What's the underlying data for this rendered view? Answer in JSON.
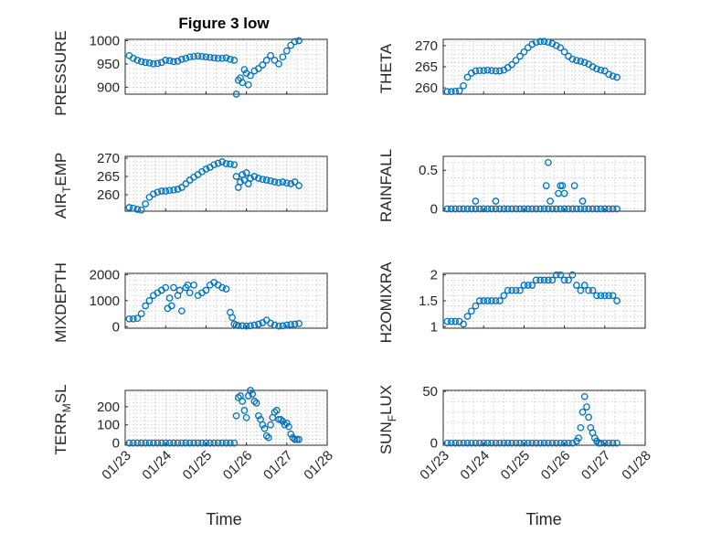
{
  "chart_data": [
    {
      "type": "scatter",
      "id": "pressure",
      "title": "Figure 3 low",
      "ylabel": "PRESSURE",
      "ylim": [
        885,
        1003
      ],
      "yticks": [
        900,
        950,
        1000
      ],
      "ytick_labels": [
        "900",
        "950",
        "1000"
      ],
      "x": [
        0.1,
        0.2,
        0.3,
        0.4,
        0.5,
        0.6,
        0.7,
        0.8,
        0.9,
        1.0,
        1.1,
        1.2,
        1.3,
        1.4,
        1.5,
        1.6,
        1.7,
        1.8,
        1.9,
        2.0,
        2.1,
        2.2,
        2.3,
        2.4,
        2.5,
        2.6,
        2.7,
        2.75,
        2.8,
        2.85,
        2.9,
        2.95,
        3.0,
        3.05,
        3.1,
        3.2,
        3.3,
        3.4,
        3.5,
        3.6,
        3.7,
        3.8,
        3.9,
        4.0,
        4.1,
        4.2,
        4.3
      ],
      "y": [
        968,
        962,
        958,
        955,
        953,
        952,
        950,
        951,
        953,
        958,
        957,
        955,
        956,
        960,
        962,
        965,
        966,
        967,
        966,
        965,
        964,
        963,
        962,
        962,
        963,
        960,
        958,
        885,
        915,
        920,
        910,
        938,
        930,
        905,
        925,
        935,
        940,
        948,
        958,
        968,
        958,
        950,
        965,
        978,
        990,
        998,
        1000
      ]
    },
    {
      "type": "scatter",
      "id": "theta",
      "ylabel": "THETA",
      "ylim": [
        258.5,
        271.5
      ],
      "yticks": [
        260,
        265,
        270
      ],
      "ytick_labels": [
        "260",
        "265",
        "270"
      ],
      "x": [
        0.1,
        0.2,
        0.3,
        0.4,
        0.5,
        0.6,
        0.7,
        0.8,
        0.9,
        1.0,
        1.1,
        1.2,
        1.3,
        1.4,
        1.5,
        1.6,
        1.7,
        1.8,
        1.9,
        2.0,
        2.1,
        2.2,
        2.3,
        2.4,
        2.5,
        2.6,
        2.7,
        2.8,
        2.9,
        3.0,
        3.1,
        3.2,
        3.3,
        3.4,
        3.5,
        3.6,
        3.7,
        3.8,
        3.9,
        4.0,
        4.1,
        4.2,
        4.3
      ],
      "y": [
        259.1,
        259.1,
        259.2,
        259.3,
        260.5,
        262.5,
        263.5,
        264,
        264.1,
        264.1,
        264.2,
        264.1,
        264,
        264,
        264.2,
        264.8,
        265.5,
        266.5,
        267.5,
        268.5,
        269.5,
        270.3,
        270.8,
        271,
        271,
        270.8,
        270.5,
        270,
        269.5,
        268.5,
        267.5,
        266.8,
        266.5,
        266.3,
        266,
        265.6,
        265,
        264.5,
        264.2,
        264,
        263.2,
        262.8,
        262.5
      ]
    },
    {
      "type": "scatter",
      "id": "air-temp",
      "ylabel_main": "AIR",
      "ylabel_sub": "T",
      "ylabel_rest": "EMP",
      "ylim": [
        255.5,
        270.5
      ],
      "yticks": [
        260,
        265,
        270
      ],
      "ytick_labels": [
        "260",
        "265",
        "270"
      ],
      "x": [
        0.1,
        0.2,
        0.3,
        0.4,
        0.5,
        0.6,
        0.7,
        0.8,
        0.9,
        1.0,
        1.1,
        1.2,
        1.3,
        1.4,
        1.5,
        1.6,
        1.7,
        1.8,
        1.9,
        2.0,
        2.1,
        2.2,
        2.3,
        2.4,
        2.5,
        2.6,
        2.7,
        2.75,
        2.8,
        2.85,
        2.9,
        2.95,
        3.0,
        3.05,
        3.1,
        3.2,
        3.3,
        3.4,
        3.5,
        3.6,
        3.7,
        3.8,
        3.9,
        4.0,
        4.1,
        4.2,
        4.3
      ],
      "y": [
        256.5,
        256.3,
        256,
        255.8,
        257.5,
        259.3,
        260.2,
        260.7,
        261,
        261,
        261.2,
        261.3,
        261.5,
        262,
        263,
        264,
        264.8,
        265.5,
        266.3,
        267,
        267.5,
        268.2,
        268.6,
        269,
        268.5,
        268.4,
        268.2,
        265,
        262,
        263.5,
        265.5,
        264,
        266,
        263,
        264.5,
        265,
        264.5,
        264.2,
        264,
        263.8,
        263.5,
        263.3,
        263.5,
        263.2,
        263,
        263.5,
        262.5
      ]
    },
    {
      "type": "scatter",
      "id": "rainfall",
      "ylabel": "RAINFALL",
      "ylim": [
        -0.03,
        0.68
      ],
      "yticks": [
        0,
        0.5
      ],
      "ytick_labels": [
        "0",
        "0.5"
      ],
      "x": [
        0.1,
        0.2,
        0.3,
        0.4,
        0.5,
        0.6,
        0.7,
        0.8,
        0.9,
        1.0,
        1.1,
        1.2,
        1.3,
        1.4,
        1.5,
        1.6,
        1.7,
        1.8,
        1.9,
        2.0,
        2.1,
        2.2,
        2.3,
        2.4,
        2.5,
        2.6,
        2.7,
        2.8,
        2.9,
        3.0,
        3.1,
        3.2,
        3.3,
        3.4,
        3.5,
        3.6,
        3.7,
        3.8,
        3.9,
        4.0,
        4.1,
        4.2,
        4.3,
        0.8,
        1.3,
        2.55,
        2.6,
        2.65,
        2.85,
        2.9,
        2.95,
        3.0,
        3.25,
        3.45
      ],
      "y": [
        0,
        0,
        0,
        0,
        0,
        0,
        0,
        0,
        0,
        0,
        0,
        0,
        0,
        0,
        0,
        0,
        0,
        0,
        0,
        0,
        0,
        0,
        0,
        0,
        0,
        0,
        0,
        0,
        0,
        0,
        0,
        0,
        0,
        0,
        0,
        0,
        0,
        0,
        0,
        0,
        0,
        0,
        0,
        0.1,
        0.1,
        0.3,
        0.6,
        0.1,
        0.2,
        0.3,
        0.3,
        0.2,
        0.3,
        0.1
      ]
    },
    {
      "type": "scatter",
      "id": "mixdepth",
      "ylabel": "MIXDEPTH",
      "ylim": [
        -60,
        2050
      ],
      "yticks": [
        0,
        1000,
        2000
      ],
      "ytick_labels": [
        "0",
        "1000",
        "2000"
      ],
      "x": [
        0.1,
        0.2,
        0.3,
        0.4,
        0.5,
        0.6,
        0.7,
        0.8,
        0.9,
        1.0,
        1.05,
        1.1,
        1.15,
        1.2,
        1.3,
        1.35,
        1.4,
        1.5,
        1.55,
        1.6,
        1.7,
        1.8,
        1.9,
        2.0,
        2.1,
        2.2,
        2.3,
        2.4,
        2.5,
        2.6,
        2.65,
        2.7,
        2.75,
        2.8,
        2.9,
        3.0,
        3.1,
        3.2,
        3.3,
        3.4,
        3.5,
        3.6,
        3.7,
        3.8,
        3.9,
        4.0,
        4.1,
        4.2,
        4.3
      ],
      "y": [
        300,
        300,
        320,
        500,
        800,
        1000,
        1200,
        1300,
        1400,
        1500,
        700,
        1100,
        800,
        1500,
        1200,
        1400,
        600,
        1500,
        1600,
        1300,
        1600,
        1200,
        1300,
        1400,
        1600,
        1700,
        1600,
        1500,
        1450,
        550,
        350,
        100,
        60,
        40,
        30,
        20,
        30,
        60,
        100,
        150,
        250,
        130,
        60,
        20,
        30,
        60,
        80,
        100,
        120
      ]
    },
    {
      "type": "scatter",
      "id": "h2omixra",
      "ylabel": "H2OMIXRA",
      "ylim": [
        0.97,
        2.03
      ],
      "yticks": [
        1,
        1.5,
        2
      ],
      "ytick_labels": [
        "1",
        "1.5",
        "2"
      ],
      "x": [
        0.1,
        0.2,
        0.3,
        0.4,
        0.5,
        0.6,
        0.7,
        0.8,
        0.9,
        1.0,
        1.1,
        1.2,
        1.3,
        1.4,
        1.5,
        1.6,
        1.7,
        1.8,
        1.9,
        2.0,
        2.1,
        2.2,
        2.3,
        2.4,
        2.5,
        2.6,
        2.7,
        2.8,
        2.9,
        3.0,
        3.1,
        3.2,
        3.3,
        3.4,
        3.5,
        3.6,
        3.7,
        3.8,
        3.9,
        4.0,
        4.1,
        4.2,
        4.3
      ],
      "y": [
        1.1,
        1.1,
        1.1,
        1.1,
        1.05,
        1.2,
        1.3,
        1.4,
        1.5,
        1.5,
        1.5,
        1.5,
        1.5,
        1.5,
        1.6,
        1.7,
        1.7,
        1.7,
        1.7,
        1.8,
        1.8,
        1.8,
        1.9,
        1.9,
        1.9,
        1.9,
        1.9,
        2.0,
        2.0,
        1.9,
        1.9,
        2.0,
        1.8,
        1.7,
        1.8,
        1.7,
        1.7,
        1.6,
        1.6,
        1.6,
        1.6,
        1.6,
        1.5
      ]
    },
    {
      "type": "scatter",
      "id": "terr-msl",
      "ylabel_main": "TERR",
      "ylabel_sub": "M",
      "ylabel_rest": "SL",
      "ylim": [
        -12,
        290
      ],
      "yticks": [
        0,
        100,
        200
      ],
      "ytick_labels": [
        "0",
        "100",
        "200"
      ],
      "x": [
        0.1,
        0.2,
        0.3,
        0.4,
        0.5,
        0.6,
        0.7,
        0.8,
        0.9,
        1.0,
        1.1,
        1.2,
        1.3,
        1.4,
        1.5,
        1.6,
        1.7,
        1.8,
        1.9,
        2.0,
        2.1,
        2.2,
        2.3,
        2.4,
        2.5,
        2.6,
        2.7,
        2.75,
        2.8,
        2.85,
        2.9,
        2.95,
        3.0,
        3.05,
        3.1,
        3.15,
        3.2,
        3.25,
        3.3,
        3.35,
        3.4,
        3.45,
        3.5,
        3.55,
        3.6,
        3.65,
        3.7,
        3.75,
        3.8,
        3.85,
        3.9,
        3.95,
        4.0,
        4.05,
        4.1,
        4.15,
        4.2,
        4.25,
        4.3
      ],
      "y": [
        0,
        0,
        0,
        0,
        0,
        0,
        0,
        0,
        0,
        0,
        0,
        0,
        0,
        0,
        0,
        0,
        0,
        0,
        0,
        0,
        0,
        0,
        0,
        0,
        0,
        0,
        0,
        150,
        250,
        260,
        230,
        180,
        140,
        260,
        290,
        270,
        230,
        220,
        150,
        130,
        100,
        80,
        40,
        30,
        100,
        140,
        170,
        180,
        130,
        130,
        120,
        100,
        110,
        90,
        50,
        30,
        20,
        20,
        20
      ]
    },
    {
      "type": "scatter",
      "id": "sun-flux",
      "ylabel_main": "SUN",
      "ylabel_sub": "F",
      "ylabel_rest": "LUX",
      "ylim": [
        -2,
        51
      ],
      "yticks": [
        0,
        50
      ],
      "ytick_labels": [
        "0",
        "50"
      ],
      "x": [
        0.1,
        0.2,
        0.3,
        0.4,
        0.5,
        0.6,
        0.7,
        0.8,
        0.9,
        1.0,
        1.1,
        1.2,
        1.3,
        1.4,
        1.5,
        1.6,
        1.7,
        1.8,
        1.9,
        2.0,
        2.1,
        2.2,
        2.3,
        2.4,
        2.5,
        2.6,
        2.7,
        2.8,
        2.9,
        3.0,
        3.1,
        3.2,
        3.3,
        3.35,
        3.4,
        3.45,
        3.5,
        3.55,
        3.6,
        3.65,
        3.7,
        3.75,
        3.8,
        3.85,
        3.9,
        4.0,
        4.1,
        4.2,
        4.3
      ],
      "y": [
        0,
        0,
        0,
        0,
        0,
        0,
        0,
        0,
        0,
        0,
        0,
        0,
        0,
        0,
        0,
        0,
        0,
        0,
        0,
        0,
        0,
        0,
        0,
        0,
        0,
        0,
        0,
        0,
        0,
        0,
        0,
        0,
        2,
        5,
        15,
        30,
        45,
        35,
        25,
        15,
        10,
        5,
        2,
        0,
        0,
        0,
        0,
        0,
        0
      ]
    }
  ],
  "x_axis": {
    "xlabel": "Time",
    "xlim": [
      0,
      5
    ],
    "xticks": [
      0,
      1,
      2,
      3,
      4,
      5
    ],
    "xtick_labels": [
      "01/23",
      "01/24",
      "01/25",
      "01/26",
      "01/27",
      "01/28"
    ]
  },
  "colors": {
    "marker": "#0072bd",
    "axis": "#262626",
    "grid": "#bdbdbd"
  }
}
